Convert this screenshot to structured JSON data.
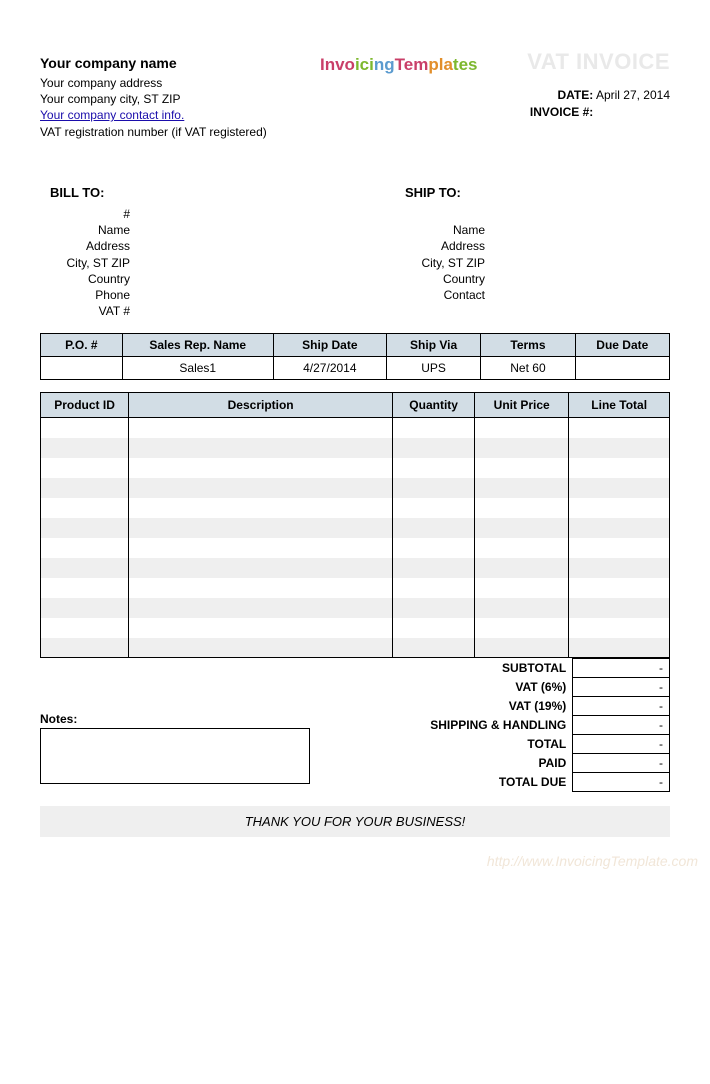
{
  "colors": {
    "header_bg": "#d2dde5",
    "stripe_bg": "#efefef",
    "border": "#000000",
    "vat_title": "#e9e9e9",
    "link": "#1a0dab",
    "watermark": "#f1e6d8"
  },
  "company": {
    "name": "Your company name",
    "address": "Your company address",
    "city_st_zip": "Your company city, ST ZIP",
    "contact_link": "Your company contact info.",
    "vat_reg": "VAT registration number (if VAT registered)"
  },
  "logo": {
    "p1": "Invo",
    "p2": "ici",
    "p3": "ng",
    "p4": "Tem",
    "p5": "pla",
    "p6": "tes"
  },
  "title": "VAT INVOICE",
  "date_label": "DATE:",
  "date_value": "April 27, 2014",
  "invoice_num_label": "INVOICE #:",
  "invoice_num_value": "",
  "bill_to": {
    "heading": "BILL TO:",
    "lines": [
      "#",
      "Name",
      "Address",
      "City, ST ZIP",
      "Country",
      "Phone",
      "VAT #"
    ]
  },
  "ship_to": {
    "heading": "SHIP TO:",
    "lines": [
      "",
      "Name",
      "Address",
      "City, ST ZIP",
      "Country",
      "Contact",
      ""
    ]
  },
  "meta": {
    "headers": [
      "P.O. #",
      "Sales Rep. Name",
      "Ship Date",
      "Ship Via",
      "Terms",
      "Due Date"
    ],
    "row": [
      "",
      "Sales1",
      "4/27/2014",
      "UPS",
      "Net 60",
      ""
    ],
    "col_widths_pct": [
      13,
      24,
      18,
      15,
      15,
      15
    ]
  },
  "items": {
    "headers": [
      "Product ID",
      "Description",
      "Quantity",
      "Unit Price",
      "Line Total"
    ],
    "col_widths_pct": [
      14,
      42,
      13,
      15,
      16
    ],
    "row_count": 12
  },
  "totals": {
    "rows": [
      {
        "label": "SUBTOTAL",
        "value": "-"
      },
      {
        "label": "VAT (6%)",
        "value": "-"
      },
      {
        "label": "VAT (19%)",
        "value": "-"
      },
      {
        "label": "SHIPPING & HANDLING",
        "value": "-"
      },
      {
        "label": "TOTAL",
        "value": "-"
      },
      {
        "label": "PAID",
        "value": "-"
      },
      {
        "label": "TOTAL DUE",
        "value": "-"
      }
    ]
  },
  "notes_label": "Notes:",
  "thanks": "THANK YOU FOR YOUR BUSINESS!",
  "watermark": "http://www.InvoicingTemplate.com"
}
